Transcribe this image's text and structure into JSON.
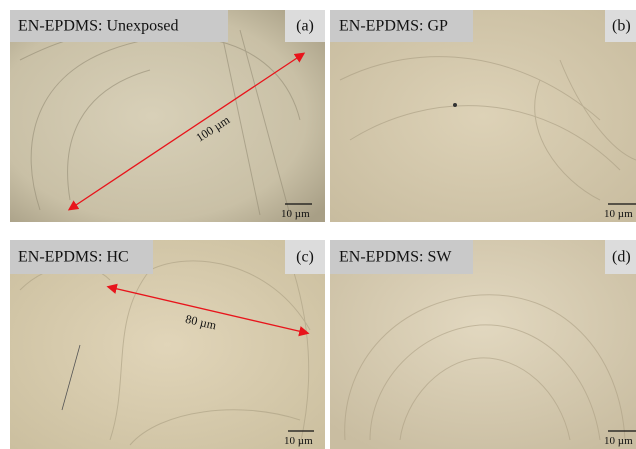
{
  "panels": [
    {
      "label": "EN-EPDMS: Unexposed",
      "letter": "(a)",
      "scale_bar": "10 µm",
      "annotation": "100 µm"
    },
    {
      "label": "EN-EPDMS: GP",
      "letter": "(b)",
      "scale_bar": "10 µm"
    },
    {
      "label": "EN-EPDMS: HC",
      "letter": "(c)",
      "scale_bar": "10 µm",
      "annotation": "80 µm"
    },
    {
      "label": "EN-EPDMS: SW",
      "letter": "(d)",
      "scale_bar": "10 µm"
    }
  ]
}
